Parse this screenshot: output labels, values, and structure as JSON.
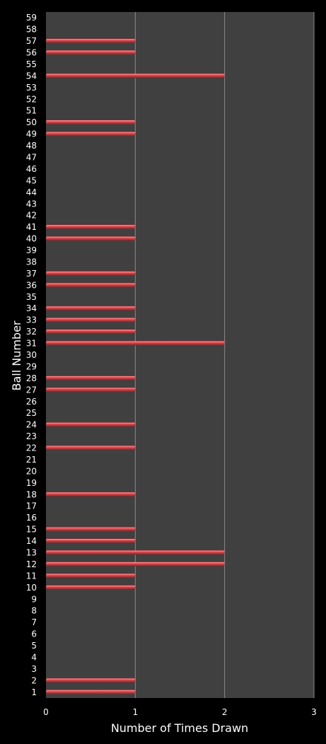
{
  "chart_data": {
    "type": "bar",
    "orientation": "horizontal",
    "xlabel": "Number of Times Drawn",
    "ylabel": "Ball Number",
    "xlim": [
      0,
      3
    ],
    "xticks": [
      "0",
      "1",
      "2",
      "3"
    ],
    "grid": "vertical",
    "categories": [
      "1",
      "2",
      "3",
      "4",
      "5",
      "6",
      "7",
      "8",
      "9",
      "10",
      "11",
      "12",
      "13",
      "14",
      "15",
      "16",
      "17",
      "18",
      "19",
      "20",
      "21",
      "22",
      "23",
      "24",
      "25",
      "26",
      "27",
      "28",
      "29",
      "30",
      "31",
      "32",
      "33",
      "34",
      "35",
      "36",
      "37",
      "38",
      "39",
      "40",
      "41",
      "42",
      "43",
      "44",
      "45",
      "46",
      "47",
      "48",
      "49",
      "50",
      "51",
      "52",
      "53",
      "54",
      "55",
      "56",
      "57",
      "58",
      "59"
    ],
    "values": [
      1,
      1,
      0,
      0,
      0,
      0,
      0,
      0,
      0,
      1,
      1,
      2,
      2,
      1,
      1,
      0,
      0,
      1,
      0,
      0,
      0,
      1,
      0,
      1,
      0,
      0,
      1,
      1,
      0,
      0,
      2,
      1,
      1,
      1,
      0,
      1,
      1,
      0,
      0,
      1,
      1,
      0,
      0,
      0,
      0,
      0,
      0,
      0,
      1,
      1,
      0,
      0,
      0,
      2,
      0,
      1,
      1,
      0,
      0
    ],
    "colors": {
      "background": "#000000",
      "plot_area": "#404040",
      "gridline": "#8c8c8c",
      "bar": "#e0464b",
      "bar_highlight": "#f7a3a5",
      "bar_shadow": "#8c1a1e",
      "text": "#ffffff"
    }
  }
}
